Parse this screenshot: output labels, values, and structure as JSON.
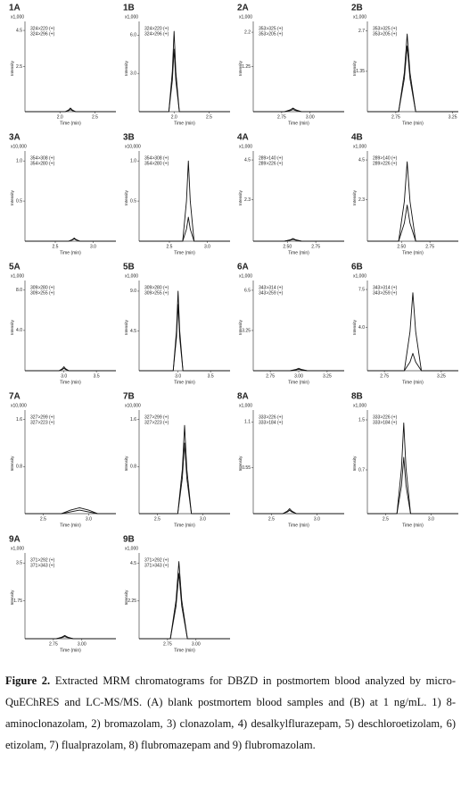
{
  "xlabel": "Time (min)",
  "ylabel": "Intensity",
  "panels": [
    {
      "label": "1A",
      "scale": "x1,000",
      "transitions": [
        "324>220 (+)",
        "324>296 (+)"
      ],
      "xlim": [
        1.5,
        2.8
      ],
      "xticks": [
        {
          "value": 2,
          "label": "2.0"
        },
        2.5
      ],
      "ylim": [
        0,
        4.8
      ],
      "yticks": [
        2.5,
        4.5
      ],
      "traces": [
        {
          "x": [
            1.5,
            2.075,
            2.125,
            2.15,
            2.175,
            2.225,
            2.8
          ],
          "values": [
            0,
            0,
            0.1,
            0.2,
            0.1,
            0,
            0
          ]
        },
        {
          "x": [
            1.5,
            2.075,
            2.125,
            2.15,
            2.175,
            2.225,
            2.8
          ],
          "values": [
            0,
            0,
            0.06,
            0.12,
            0.06,
            0,
            0
          ]
        }
      ]
    },
    {
      "label": "1B",
      "scale": "x1,000",
      "transitions": [
        "324>220 (+)",
        "324>296 (+)"
      ],
      "xlim": [
        1.5,
        2.8
      ],
      "xticks": [
        {
          "value": 2,
          "label": "2.0"
        },
        2.5
      ],
      "ylim": [
        0,
        6.8
      ],
      "yticks": [
        {
          "value": 3,
          "label": "3.0"
        },
        {
          "value": 6,
          "label": "6.0"
        }
      ],
      "traces": [
        {
          "x": [
            1.5,
            1.925,
            1.975,
            2.0,
            2.025,
            2.075,
            2.8
          ],
          "values": [
            0,
            0,
            3.15,
            6.3,
            3.15,
            0,
            0
          ]
        },
        {
          "x": [
            1.5,
            1.925,
            1.975,
            2.0,
            2.025,
            2.075,
            2.8
          ],
          "values": [
            0,
            0,
            2.45,
            4.9,
            2.45,
            0,
            0
          ]
        }
      ]
    },
    {
      "label": "2A",
      "scale": "x1,000",
      "transitions": [
        "353>325 (+)",
        "353>205 (+)"
      ],
      "xlim": [
        2.5,
        3.3
      ],
      "xticks": [
        2.75,
        {
          "value": 3,
          "label": "3.00"
        }
      ],
      "ylim": [
        0,
        2.4
      ],
      "yticks": [
        1.25,
        2.2
      ],
      "traces": [
        {
          "x": [
            2.5,
            2.775,
            2.825,
            2.85,
            2.875,
            2.925,
            3.3
          ],
          "values": [
            0,
            0,
            0.05,
            0.1,
            0.05,
            0,
            0
          ]
        },
        {
          "x": [
            2.5,
            2.775,
            2.825,
            2.85,
            2.875,
            2.925,
            3.3
          ],
          "values": [
            0,
            0,
            0.03,
            0.06,
            0.03,
            0,
            0
          ]
        }
      ]
    },
    {
      "label": "2B",
      "scale": "x1,000",
      "transitions": [
        "353>325 (+)",
        "353>205 (+)"
      ],
      "xlim": [
        2.5,
        3.3
      ],
      "xticks": [
        2.75,
        3.25
      ],
      "ylim": [
        0,
        2.9
      ],
      "yticks": [
        1.35,
        2.7
      ],
      "traces": [
        {
          "x": [
            2.5,
            2.775,
            2.825,
            2.85,
            2.875,
            2.925,
            3.3
          ],
          "values": [
            0,
            0,
            1.3,
            2.6,
            1.3,
            0,
            0
          ]
        },
        {
          "x": [
            2.5,
            2.775,
            2.825,
            2.85,
            2.875,
            2.925,
            3.3
          ],
          "values": [
            0,
            0,
            1.1,
            2.2,
            1.1,
            0,
            0
          ]
        }
      ]
    },
    {
      "label": "3A",
      "scale": "x10,000",
      "transitions": [
        "354>308 (+)",
        "354>280 (+)"
      ],
      "xlim": [
        2.1,
        3.3
      ],
      "xticks": [
        2.5,
        {
          "value": 3,
          "label": "3.0"
        }
      ],
      "ylim": [
        0,
        1.08
      ],
      "yticks": [
        0.5,
        {
          "value": 1,
          "label": "1.0"
        }
      ],
      "traces": [
        {
          "x": [
            2.1,
            2.675,
            2.725,
            2.75,
            2.775,
            2.825,
            3.3
          ],
          "values": [
            0,
            0,
            0.02,
            0.04,
            0.02,
            0,
            0
          ]
        },
        {
          "x": [
            2.1,
            2.675,
            2.725,
            2.75,
            2.775,
            2.825,
            3.3
          ],
          "values": [
            0,
            0,
            0.015,
            0.03,
            0.015,
            0,
            0
          ]
        }
      ]
    },
    {
      "label": "3B",
      "scale": "x10,000",
      "transitions": [
        "354>308 (+)",
        "354>280 (+)"
      ],
      "xlim": [
        2.1,
        3.3
      ],
      "xticks": [
        2.5,
        {
          "value": 3,
          "label": "3.0"
        }
      ],
      "ylim": [
        0,
        1.08
      ],
      "yticks": [
        0.5,
        {
          "value": 1,
          "label": "1.0"
        }
      ],
      "traces": [
        {
          "x": [
            2.1,
            2.675,
            2.725,
            2.75,
            2.775,
            2.825,
            3.3
          ],
          "values": [
            0,
            0,
            0.5,
            1.0,
            0.5,
            0,
            0
          ]
        },
        {
          "x": [
            2.1,
            2.675,
            2.725,
            2.75,
            2.775,
            2.825,
            3.3
          ],
          "values": [
            0,
            0,
            0.15,
            0.3,
            0.15,
            0,
            0
          ]
        }
      ]
    },
    {
      "label": "4A",
      "scale": "x1,000",
      "transitions": [
        "289>140 (+)",
        "289>226 (+)"
      ],
      "xlim": [
        2.2,
        3.0
      ],
      "xticks": [
        {
          "value": 2.5,
          "label": "2.50"
        },
        2.75
      ],
      "ylim": [
        0,
        4.8
      ],
      "yticks": [
        2.3,
        4.5
      ],
      "traces": [
        {
          "x": [
            2.2,
            2.475,
            2.525,
            2.55,
            2.575,
            2.625,
            3.0
          ],
          "values": [
            0,
            0,
            0.075,
            0.15,
            0.075,
            0,
            0
          ]
        },
        {
          "x": [
            2.2,
            2.475,
            2.525,
            2.55,
            2.575,
            2.625,
            3.0
          ],
          "values": [
            0,
            0,
            0.05,
            0.1,
            0.05,
            0,
            0
          ]
        }
      ]
    },
    {
      "label": "4B",
      "scale": "x1,000",
      "transitions": [
        "289>140 (+)",
        "289>226 (+)"
      ],
      "xlim": [
        2.2,
        3.0
      ],
      "xticks": [
        {
          "value": 2.5,
          "label": "2.50"
        },
        2.75
      ],
      "ylim": [
        0,
        4.8
      ],
      "yticks": [
        2.3,
        4.5
      ],
      "traces": [
        {
          "x": [
            2.2,
            2.475,
            2.525,
            2.55,
            2.575,
            2.625,
            3.0
          ],
          "values": [
            0,
            0,
            2.2,
            4.4,
            2.2,
            0,
            0
          ]
        },
        {
          "x": [
            2.2,
            2.475,
            2.525,
            2.55,
            2.575,
            2.625,
            3.0
          ],
          "values": [
            0,
            0,
            1.0,
            2.0,
            1.0,
            0,
            0
          ]
        }
      ]
    },
    {
      "label": "5A",
      "scale": "x1,000",
      "transitions": [
        "309>280 (+)",
        "309>255 (+)"
      ],
      "xlim": [
        2.4,
        3.8
      ],
      "xticks": [
        {
          "value": 3,
          "label": "3.0"
        },
        3.5
      ],
      "ylim": [
        0,
        8.6
      ],
      "yticks": [
        {
          "value": 4,
          "label": "4.0"
        },
        {
          "value": 8,
          "label": "8.0"
        }
      ],
      "traces": [
        {
          "x": [
            2.4,
            2.925,
            2.975,
            3.0,
            3.025,
            3.075,
            3.8
          ],
          "values": [
            0,
            0,
            0.2,
            0.4,
            0.2,
            0,
            0
          ]
        },
        {
          "x": [
            2.4,
            2.925,
            2.975,
            3.0,
            3.025,
            3.075,
            3.8
          ],
          "values": [
            0,
            0,
            0.125,
            0.25,
            0.125,
            0,
            0
          ]
        }
      ]
    },
    {
      "label": "5B",
      "scale": "x1,000",
      "transitions": [
        "309>280 (+)",
        "309>255 (+)"
      ],
      "xlim": [
        2.4,
        3.8
      ],
      "xticks": [
        {
          "value": 3,
          "label": "3.0"
        },
        3.5
      ],
      "ylim": [
        0,
        9.8
      ],
      "yticks": [
        4.5,
        {
          "value": 9,
          "label": "9.0"
        }
      ],
      "traces": [
        {
          "x": [
            2.4,
            2.925,
            2.975,
            3.0,
            3.025,
            3.075,
            3.8
          ],
          "values": [
            0,
            0,
            4.5,
            9.0,
            4.5,
            0,
            0
          ]
        },
        {
          "x": [
            2.4,
            2.925,
            2.975,
            3.0,
            3.025,
            3.075,
            3.8
          ],
          "values": [
            0,
            0,
            3.75,
            7.5,
            3.75,
            0,
            0
          ]
        }
      ]
    },
    {
      "label": "6A",
      "scale": "x1,000",
      "transitions": [
        "343>314 (+)",
        "343>259 (+)"
      ],
      "xlim": [
        2.6,
        3.4
      ],
      "xticks": [
        2.75,
        {
          "value": 3,
          "label": "3.00"
        },
        3.25
      ],
      "ylim": [
        0,
        7
      ],
      "yticks": [
        3.25,
        6.5
      ],
      "traces": [
        {
          "x": [
            2.6,
            2.925,
            2.975,
            3.0,
            3.025,
            3.075,
            3.4
          ],
          "values": [
            0,
            0,
            0.1,
            0.2,
            0.1,
            0,
            0
          ]
        },
        {
          "x": [
            2.6,
            2.925,
            2.975,
            3.0,
            3.025,
            3.075,
            3.4
          ],
          "values": [
            0,
            0,
            0.06,
            0.12,
            0.06,
            0,
            0
          ]
        }
      ]
    },
    {
      "label": "6B",
      "scale": "x1,000",
      "transitions": [
        "343>314 (+)",
        "343>259 (+)"
      ],
      "xlim": [
        2.6,
        3.4
      ],
      "xticks": [
        2.75,
        3.25
      ],
      "ylim": [
        0,
        8
      ],
      "yticks": [
        {
          "value": 4,
          "label": "4.0"
        },
        7.5
      ],
      "traces": [
        {
          "x": [
            2.6,
            2.925,
            2.975,
            3.0,
            3.025,
            3.075,
            3.4
          ],
          "values": [
            0,
            0,
            3.6,
            7.2,
            3.6,
            0,
            0
          ]
        },
        {
          "x": [
            2.6,
            2.925,
            2.975,
            3.0,
            3.025,
            3.075,
            3.4
          ],
          "values": [
            0,
            0,
            0.8,
            1.6,
            0.8,
            0,
            0
          ]
        }
      ]
    },
    {
      "label": "7A",
      "scale": "x10,000",
      "transitions": [
        "327>299 (+)",
        "327>223 (+)"
      ],
      "xlim": [
        2.3,
        3.3
      ],
      "xticks": [
        2.5,
        {
          "value": 3,
          "label": "3.0"
        }
      ],
      "ylim": [
        0,
        1.7
      ],
      "yticks": [
        0.8,
        1.6
      ],
      "traces": [
        {
          "x": [
            2.3,
            2.7,
            2.8,
            2.9,
            3.0,
            3.1,
            3.3
          ],
          "values": [
            0,
            0,
            0.06,
            0.1,
            0.06,
            0,
            0
          ]
        },
        {
          "x": [
            2.3,
            2.7,
            2.8,
            2.9,
            3.0,
            3.1,
            3.3
          ],
          "values": [
            0,
            0,
            0.03,
            0.06,
            0.03,
            0,
            0
          ]
        }
      ]
    },
    {
      "label": "7B",
      "scale": "x10,000",
      "transitions": [
        "327>299 (+)",
        "327>223 (+)"
      ],
      "xlim": [
        2.3,
        3.3
      ],
      "xticks": [
        2.5,
        {
          "value": 3,
          "label": "3.0"
        }
      ],
      "ylim": [
        0,
        1.7
      ],
      "yticks": [
        0.8,
        1.6
      ],
      "traces": [
        {
          "x": [
            2.3,
            2.725,
            2.775,
            2.8,
            2.825,
            2.875,
            3.3
          ],
          "values": [
            0,
            0,
            0.75,
            1.5,
            0.75,
            0,
            0
          ]
        },
        {
          "x": [
            2.3,
            2.725,
            2.775,
            2.8,
            2.825,
            2.875,
            3.3
          ],
          "values": [
            0,
            0,
            0.6,
            1.2,
            0.6,
            0,
            0
          ]
        }
      ]
    },
    {
      "label": "8A",
      "scale": "x1,000",
      "transitions": [
        "333>226 (+)",
        "333>184 (+)"
      ],
      "xlim": [
        2.3,
        3.3
      ],
      "xticks": [
        2.5,
        {
          "value": 3,
          "label": "3.0"
        }
      ],
      "ylim": [
        0,
        1.2
      ],
      "yticks": [
        0.55,
        1.1
      ],
      "traces": [
        {
          "x": [
            2.3,
            2.625,
            2.675,
            2.7,
            2.725,
            2.775,
            3.3
          ],
          "values": [
            0,
            0,
            0.03,
            0.06,
            0.03,
            0,
            0
          ]
        },
        {
          "x": [
            2.3,
            2.625,
            2.675,
            2.7,
            2.725,
            2.775,
            3.3
          ],
          "values": [
            0,
            0,
            0.02,
            0.04,
            0.02,
            0,
            0
          ]
        }
      ]
    },
    {
      "label": "8B",
      "scale": "x1,000",
      "transitions": [
        "333>226 (+)",
        "333>184 (+)"
      ],
      "xlim": [
        2.3,
        3.3
      ],
      "xticks": [
        2.5,
        {
          "value": 3,
          "label": "3.0"
        }
      ],
      "ylim": [
        0,
        1.6
      ],
      "yticks": [
        0.7,
        1.5
      ],
      "traces": [
        {
          "x": [
            2.3,
            2.625,
            2.675,
            2.7,
            2.725,
            2.775,
            3.3
          ],
          "values": [
            0,
            0,
            0.725,
            1.45,
            0.725,
            0,
            0
          ]
        },
        {
          "x": [
            2.3,
            2.625,
            2.675,
            2.7,
            2.725,
            2.775,
            3.3
          ],
          "values": [
            0,
            0,
            0.45,
            0.9,
            0.45,
            0,
            0
          ]
        }
      ]
    },
    {
      "label": "9A",
      "scale": "x1,000",
      "transitions": [
        "371>292 (+)",
        "371>343 (+)"
      ],
      "xlim": [
        2.5,
        3.3
      ],
      "xticks": [
        2.75,
        {
          "value": 3,
          "label": "3.00"
        }
      ],
      "ylim": [
        0,
        3.8
      ],
      "yticks": [
        1.75,
        3.5
      ],
      "traces": [
        {
          "x": [
            2.5,
            2.775,
            2.825,
            2.85,
            2.875,
            2.925,
            3.3
          ],
          "values": [
            0,
            0,
            0.075,
            0.15,
            0.075,
            0,
            0
          ]
        },
        {
          "x": [
            2.5,
            2.775,
            2.825,
            2.85,
            2.875,
            2.925,
            3.3
          ],
          "values": [
            0,
            0,
            0.05,
            0.1,
            0.05,
            0,
            0
          ]
        }
      ]
    },
    {
      "label": "9B",
      "scale": "x1,000",
      "transitions": [
        "371>292 (+)",
        "371>343 (+)"
      ],
      "xlim": [
        2.5,
        3.3
      ],
      "xticks": [
        2.75,
        {
          "value": 3,
          "label": "3.00"
        }
      ],
      "ylim": [
        0,
        4.9
      ],
      "yticks": [
        2.25,
        4.5
      ],
      "traces": [
        {
          "x": [
            2.5,
            2.775,
            2.825,
            2.85,
            2.875,
            2.925,
            3.3
          ],
          "values": [
            0,
            0,
            2.3,
            4.6,
            2.3,
            0,
            0
          ]
        },
        {
          "x": [
            2.5,
            2.775,
            2.825,
            2.85,
            2.875,
            2.925,
            3.3
          ],
          "values": [
            0,
            0,
            1.95,
            3.9,
            1.95,
            0,
            0
          ]
        }
      ]
    }
  ],
  "caption": {
    "label": "Figure 2.",
    "text": "Extracted MRM chromatograms for DBZD in postmortem blood analyzed by micro-QuEChRES and LC-MS/MS. (A) blank postmortem blood samples and (B) at 1 ng/mL. 1) 8-aminoclonazolam, 2) bromazolam, 3) clonazolam, 4) desalkylflurazepam, 5) deschloroetizolam, 6) etizolam, 7) flualprazolam, 8) flubromazepam and 9) flubromazolam."
  }
}
